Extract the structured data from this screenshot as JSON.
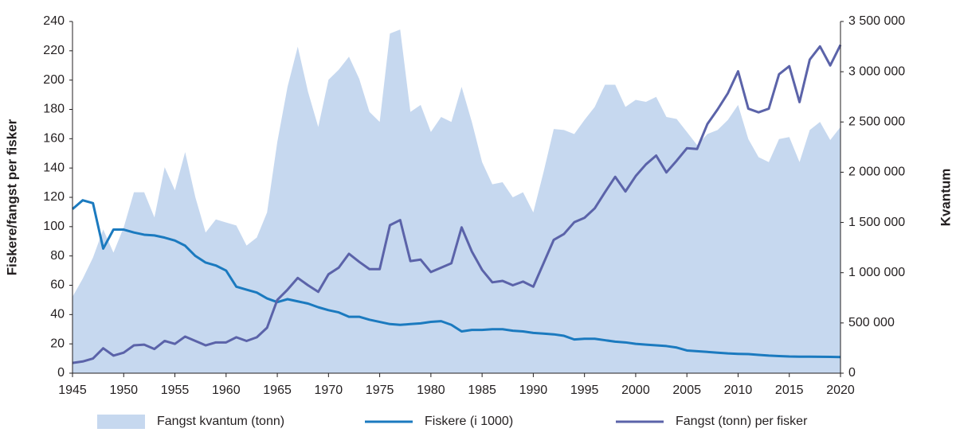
{
  "chart_data": {
    "type": "line",
    "y_label": "Fiskere/fangst per fisker",
    "y2_label": "Kvantum",
    "x": [
      1945,
      1946,
      1947,
      1948,
      1949,
      1950,
      1951,
      1952,
      1953,
      1954,
      1955,
      1956,
      1957,
      1958,
      1959,
      1960,
      1961,
      1962,
      1963,
      1964,
      1965,
      1966,
      1967,
      1968,
      1969,
      1970,
      1971,
      1972,
      1973,
      1974,
      1975,
      1976,
      1977,
      1978,
      1979,
      1980,
      1981,
      1982,
      1983,
      1984,
      1985,
      1986,
      1987,
      1988,
      1989,
      1990,
      1991,
      1992,
      1993,
      1994,
      1995,
      1996,
      1997,
      1998,
      1999,
      2000,
      2001,
      2002,
      2003,
      2004,
      2005,
      2006,
      2007,
      2008,
      2009,
      2010,
      2011,
      2012,
      2013,
      2014,
      2015,
      2016,
      2017,
      2018,
      2019,
      2020
    ],
    "xlim": [
      1945,
      2020
    ],
    "xticks": [
      1945,
      1950,
      1955,
      1960,
      1965,
      1970,
      1975,
      1980,
      1985,
      1990,
      1995,
      2000,
      2005,
      2010,
      2015,
      2020
    ],
    "ylim": [
      0,
      240
    ],
    "yticks": [
      0,
      20,
      40,
      60,
      80,
      100,
      120,
      140,
      160,
      180,
      200,
      220,
      240
    ],
    "y2lim": [
      0,
      3500000
    ],
    "y2ticks": [
      0,
      {
        "value": 500000,
        "label": "500 000"
      },
      {
        "value": 1000000,
        "label": "1 000 000"
      },
      {
        "value": 1500000,
        "label": "1 500 000"
      },
      {
        "value": 2000000,
        "label": "2 000 000"
      },
      {
        "value": 2500000,
        "label": "2 500 000"
      },
      {
        "value": 3000000,
        "label": "3 000 000"
      },
      {
        "value": 3500000,
        "label": "3 500 000"
      }
    ],
    "series": [
      {
        "name": "Fangst kvantum (tonn)",
        "kind": "area",
        "axis": "y2",
        "color": "#c6d8ef",
        "values": [
          760000,
          940000,
          1150000,
          1430000,
          1200000,
          1450000,
          1800000,
          1800000,
          1550000,
          2050000,
          1820000,
          2200000,
          1750000,
          1400000,
          1530000,
          1500000,
          1470000,
          1270000,
          1350000,
          1600000,
          2300000,
          2850000,
          3250000,
          2800000,
          2450000,
          2920000,
          3020000,
          3150000,
          2930000,
          2600000,
          2500000,
          3380000,
          3420000,
          2600000,
          2670000,
          2400000,
          2550000,
          2500000,
          2850000,
          2500000,
          2100000,
          1880000,
          1900000,
          1750000,
          1800000,
          1600000,
          2000000,
          2430000,
          2420000,
          2380000,
          2520000,
          2650000,
          2870000,
          2870000,
          2650000,
          2720000,
          2700000,
          2750000,
          2550000,
          2530000,
          2400000,
          2270000,
          2380000,
          2420000,
          2520000,
          2670000,
          2330000,
          2150000,
          2100000,
          2330000,
          2350000,
          2100000,
          2420000,
          2500000,
          2320000,
          2450000
        ]
      },
      {
        "name": "Fiskere (i 1000)",
        "kind": "line",
        "color": "#1b7abf",
        "values": [
          112,
          118,
          116,
          85,
          98,
          98,
          96,
          94.5,
          94,
          92.5,
          90.5,
          87,
          80,
          75.5,
          73.5,
          70,
          59,
          57,
          55,
          51,
          48.5,
          50.5,
          49,
          47.5,
          45,
          43,
          41.5,
          38.5,
          38.5,
          36.5,
          35,
          33.5,
          33,
          33.5,
          34,
          35,
          35.5,
          33,
          28.5,
          29.5,
          29.5,
          30,
          30,
          29,
          28.5,
          27.5,
          27,
          26.5,
          25.5,
          23,
          23.5,
          23.5,
          22.5,
          21.5,
          21,
          20,
          19.5,
          19,
          18.5,
          17.5,
          15.5,
          15,
          14.5,
          14,
          13.5,
          13.2,
          13,
          12.5,
          12,
          11.7,
          11.4,
          11.3,
          11.3,
          11.2,
          11.1,
          11
        ]
      },
      {
        "name": "Fangst (tonn) per fisker",
        "kind": "line",
        "color": "#5b63a9",
        "values": [
          7,
          8,
          10,
          17,
          12,
          14,
          19,
          19.5,
          16.5,
          22,
          20,
          25,
          22,
          19,
          21,
          21,
          24.5,
          22,
          24.5,
          31,
          50,
          57,
          65,
          60,
          55.5,
          67.5,
          72,
          81.5,
          76,
          71,
          71,
          101,
          104.5,
          76.5,
          77.5,
          69,
          72,
          75,
          99.5,
          83,
          70.5,
          62,
          63,
          60,
          62.5,
          59,
          75,
          91,
          95,
          103,
          106,
          112.5,
          123.5,
          134,
          124,
          134.5,
          142.5,
          148.5,
          137,
          145,
          153.5,
          153,
          170,
          180,
          191,
          206,
          180.5,
          178,
          180.5,
          204,
          209.5,
          185,
          214,
          223,
          210,
          224
        ]
      }
    ]
  }
}
